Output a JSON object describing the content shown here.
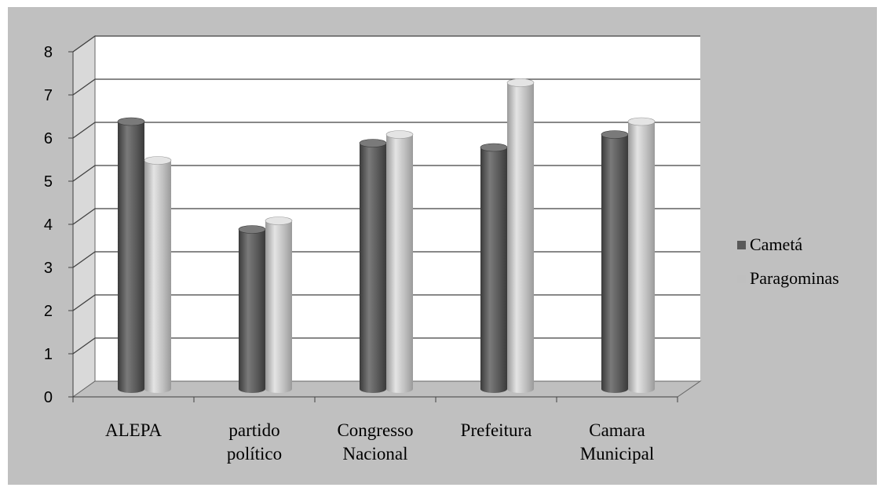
{
  "chart_data": {
    "type": "bar",
    "categories": [
      [
        "ALEPA"
      ],
      [
        "partido",
        "político"
      ],
      [
        "Congresso",
        "Nacional"
      ],
      [
        "Prefeitura"
      ],
      [
        "Camara",
        "Municipal"
      ]
    ],
    "series": [
      {
        "name": "Cametá",
        "values": [
          6.2,
          3.7,
          5.7,
          5.6,
          5.9
        ],
        "color": "#595959"
      },
      {
        "name": "Paragominas",
        "values": [
          5.3,
          3.9,
          5.9,
          7.1,
          6.2
        ],
        "color": "#bfbfbf"
      }
    ],
    "yticks": [
      "0",
      "1",
      "2",
      "3",
      "4",
      "5",
      "6",
      "7",
      "8"
    ],
    "ylim": [
      0,
      8
    ],
    "grid": true,
    "legend_position": "right",
    "background_color": "#c0c0c0",
    "plot_wall_color": "#ffffff",
    "floor_color": "#bfbfbf",
    "side_wall_color": "#d9d9d9"
  }
}
